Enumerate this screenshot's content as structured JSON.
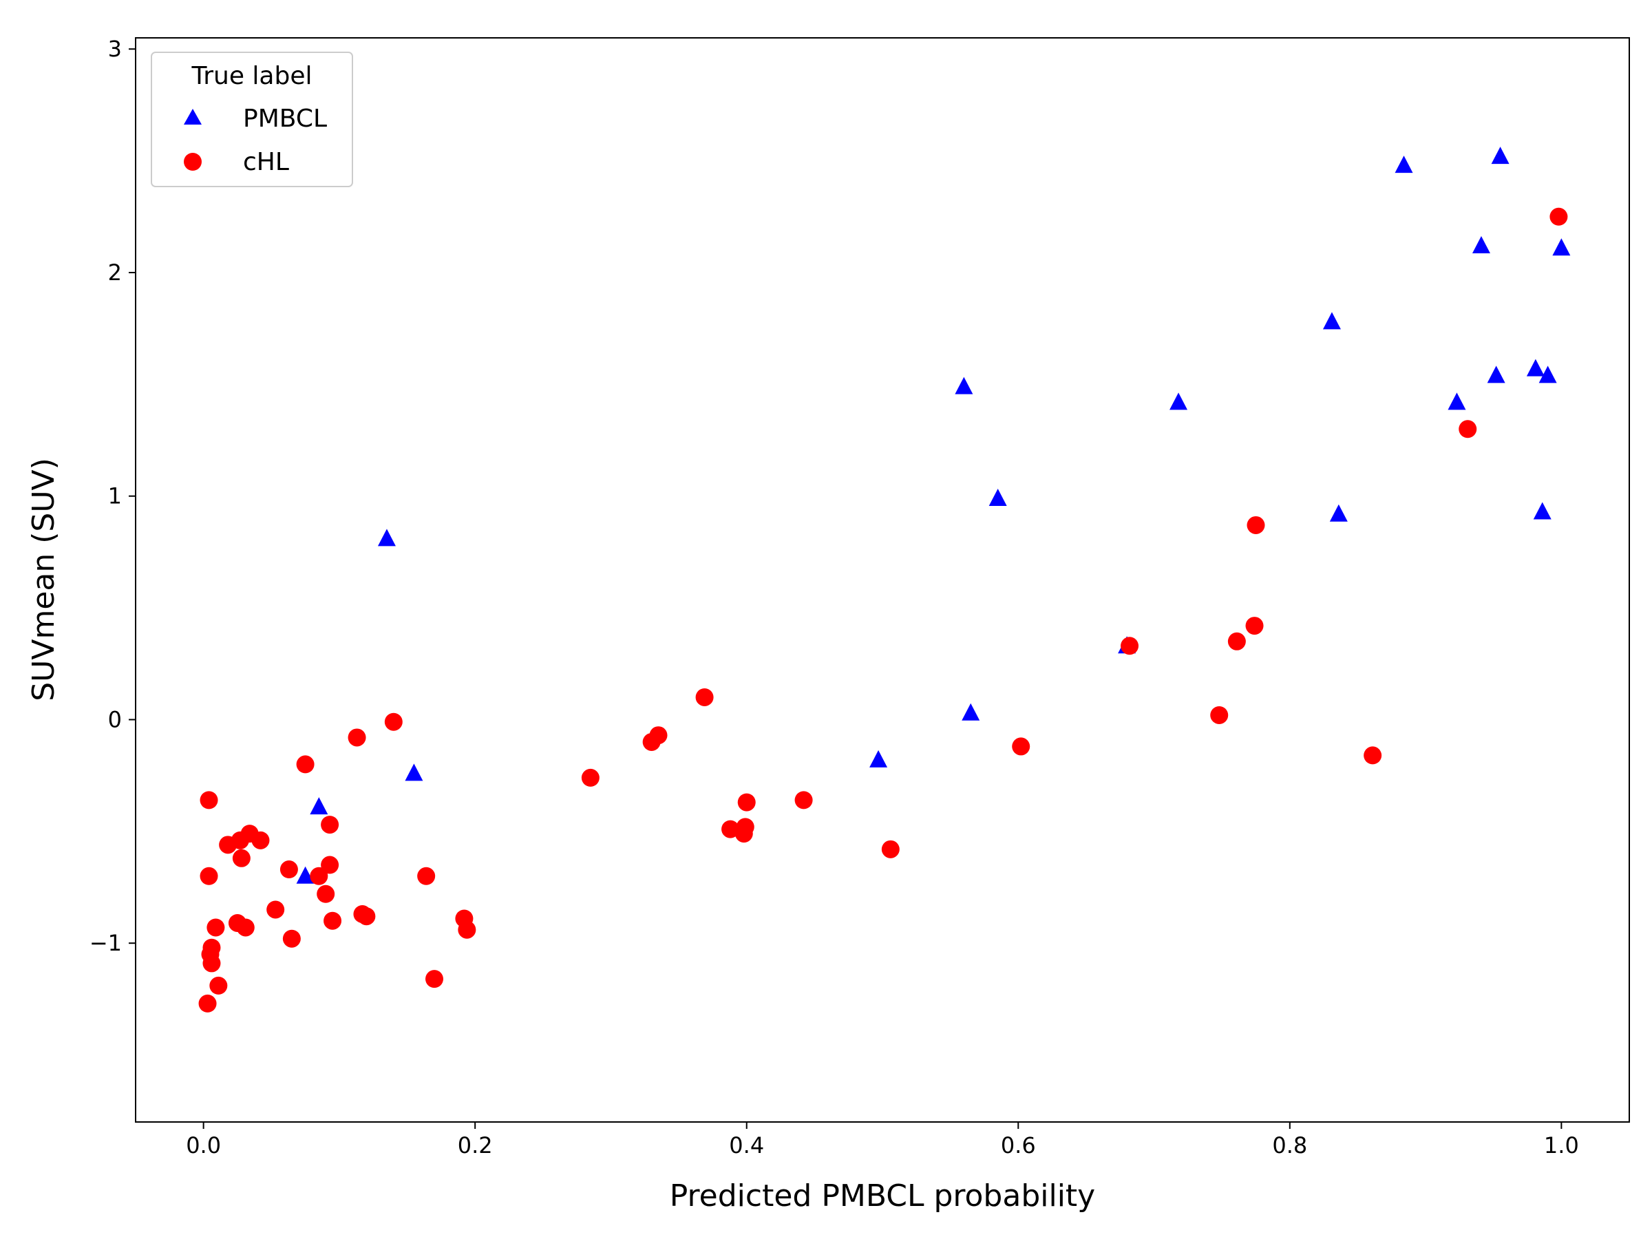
{
  "chart_data": {
    "type": "scatter",
    "xlabel": "Predicted PMBCL probability",
    "ylabel": "SUVmean (SUV)",
    "xlim": [
      -0.05,
      1.05
    ],
    "ylim": [
      -1.8,
      3.05
    ],
    "xticks": [
      0.0,
      0.2,
      0.4,
      0.6,
      0.8,
      1.0
    ],
    "xtick_labels": [
      "0.0",
      "0.2",
      "0.4",
      "0.6",
      "0.8",
      "1.0"
    ],
    "yticks": [
      -1,
      0,
      1,
      2,
      3
    ],
    "ytick_labels": [
      "−1",
      "0",
      "1",
      "2",
      "3"
    ],
    "grid": false,
    "legend": {
      "title": "True label",
      "placement": "top-left"
    },
    "series": [
      {
        "name": "PMBCL",
        "marker": "triangle",
        "color": "#0000ff",
        "points": [
          [
            0.135,
            0.81
          ],
          [
            0.155,
            -0.24
          ],
          [
            0.085,
            -0.39
          ],
          [
            0.075,
            -0.7
          ],
          [
            0.497,
            -0.18
          ],
          [
            0.56,
            1.49
          ],
          [
            0.565,
            0.03
          ],
          [
            0.585,
            0.99
          ],
          [
            0.68,
            0.33
          ],
          [
            0.718,
            1.42
          ],
          [
            0.831,
            1.78
          ],
          [
            0.836,
            0.92
          ],
          [
            0.884,
            2.48
          ],
          [
            0.923,
            1.42
          ],
          [
            0.941,
            2.12
          ],
          [
            0.952,
            1.54
          ],
          [
            0.955,
            2.52
          ],
          [
            0.981,
            1.57
          ],
          [
            0.986,
            0.93
          ],
          [
            0.99,
            1.54
          ],
          [
            1.0,
            2.11
          ]
        ]
      },
      {
        "name": "cHL",
        "marker": "circle",
        "color": "#ff0000",
        "points": [
          [
            0.003,
            -1.27
          ],
          [
            0.004,
            -0.36
          ],
          [
            0.004,
            -0.7
          ],
          [
            0.005,
            -1.05
          ],
          [
            0.006,
            -1.09
          ],
          [
            0.006,
            -1.02
          ],
          [
            0.009,
            -0.93
          ],
          [
            0.011,
            -1.19
          ],
          [
            0.018,
            -0.56
          ],
          [
            0.025,
            -0.91
          ],
          [
            0.027,
            -0.54
          ],
          [
            0.028,
            -0.62
          ],
          [
            0.031,
            -0.93
          ],
          [
            0.034,
            -0.51
          ],
          [
            0.042,
            -0.54
          ],
          [
            0.053,
            -0.85
          ],
          [
            0.063,
            -0.67
          ],
          [
            0.065,
            -0.98
          ],
          [
            0.075,
            -0.2
          ],
          [
            0.085,
            -0.7
          ],
          [
            0.09,
            -0.78
          ],
          [
            0.093,
            -0.47
          ],
          [
            0.093,
            -0.65
          ],
          [
            0.095,
            -0.9
          ],
          [
            0.113,
            -0.08
          ],
          [
            0.117,
            -0.87
          ],
          [
            0.12,
            -0.88
          ],
          [
            0.14,
            -0.01
          ],
          [
            0.164,
            -0.7
          ],
          [
            0.17,
            -1.16
          ],
          [
            0.192,
            -0.89
          ],
          [
            0.194,
            -0.94
          ],
          [
            0.285,
            -0.26
          ],
          [
            0.33,
            -0.1
          ],
          [
            0.335,
            -0.07
          ],
          [
            0.369,
            0.1
          ],
          [
            0.388,
            -0.49
          ],
          [
            0.398,
            -0.51
          ],
          [
            0.399,
            -0.48
          ],
          [
            0.4,
            -0.37
          ],
          [
            0.442,
            -0.36
          ],
          [
            0.506,
            -0.58
          ],
          [
            0.602,
            -0.12
          ],
          [
            0.682,
            0.33
          ],
          [
            0.748,
            0.02
          ],
          [
            0.761,
            0.35
          ],
          [
            0.774,
            0.42
          ],
          [
            0.775,
            0.87
          ],
          [
            0.861,
            -0.16
          ],
          [
            0.931,
            1.3
          ],
          [
            0.998,
            2.25
          ]
        ]
      }
    ]
  }
}
